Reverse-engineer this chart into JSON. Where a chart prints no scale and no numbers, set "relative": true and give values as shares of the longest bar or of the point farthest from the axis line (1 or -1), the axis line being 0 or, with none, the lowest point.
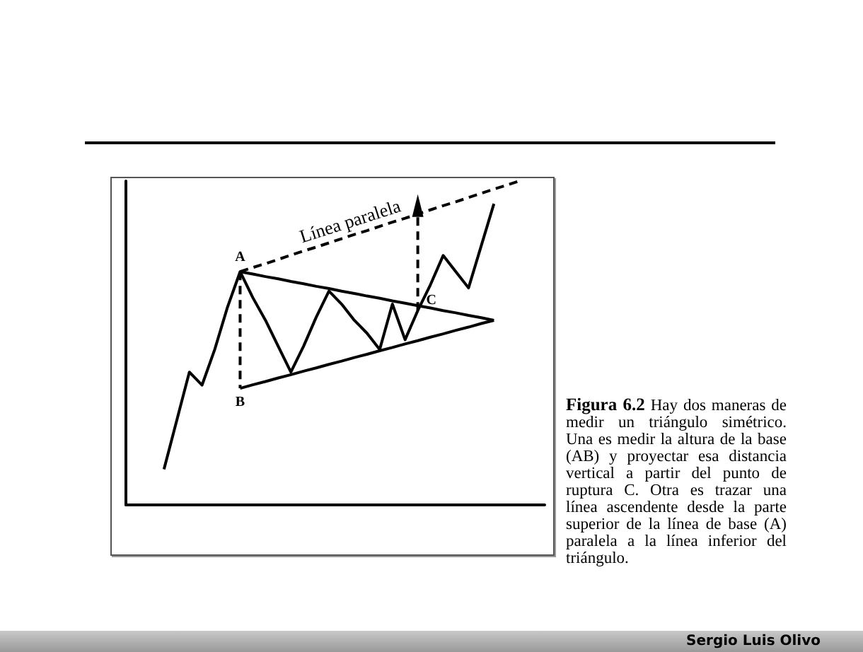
{
  "chart_data": {
    "type": "line",
    "relative": true,
    "marker": "none",
    "categories": [
      null,
      null,
      null,
      null,
      null,
      null,
      null,
      null,
      null,
      null,
      null,
      null,
      null,
      null,
      null,
      null,
      null,
      null,
      null,
      null,
      null,
      null,
      null,
      null,
      null,
      null,
      null,
      null,
      null,
      null,
      null,
      null,
      null,
      null
    ],
    "series": [
      {
        "color": "#000000",
        "line_style": "solid",
        "values": [
          null,
          null,
          null,
          0.11,
          0.26,
          0.41,
          0.37,
          0.48,
          0.61,
          0.72,
          0.64,
          0.57,
          0.49,
          0.41,
          0.49,
          0.58,
          0.66,
          0.62,
          0.57,
          0.53,
          0.48,
          0.62,
          0.51,
          0.6,
          0.68,
          0.77,
          0.72,
          0.67,
          0.8,
          0.93,
          null,
          null,
          null,
          null
        ]
      },
      {
        "color": "#000000",
        "line_style": "solid",
        "values": [
          null,
          null,
          null,
          null,
          null,
          null,
          null,
          null,
          null,
          0.72,
          0.713,
          0.705,
          0.698,
          0.69,
          0.683,
          0.675,
          0.668,
          0.66,
          0.653,
          0.645,
          0.638,
          0.63,
          0.623,
          0.615,
          0.608,
          0.6,
          0.593,
          0.585,
          0.578,
          0.57,
          null,
          null,
          null,
          null
        ]
      },
      {
        "color": "#000000",
        "line_style": "solid",
        "values": [
          null,
          null,
          null,
          null,
          null,
          null,
          null,
          null,
          null,
          0.36,
          0.371,
          0.381,
          0.392,
          0.402,
          0.413,
          0.423,
          0.434,
          0.444,
          0.455,
          0.465,
          0.476,
          0.486,
          0.497,
          0.507,
          0.518,
          0.528,
          0.539,
          0.549,
          0.56,
          0.57,
          null,
          null,
          null,
          null
        ]
      },
      {
        "color": "#000000",
        "line_style": "dashed",
        "values": [
          null,
          null,
          null,
          null,
          null,
          null,
          null,
          null,
          null,
          0.72,
          0.733,
          0.745,
          0.758,
          0.771,
          0.784,
          0.796,
          0.809,
          0.822,
          0.835,
          0.847,
          0.86,
          0.873,
          0.885,
          0.898,
          0.911,
          0.924,
          0.936,
          0.949,
          0.962,
          0.975,
          0.987,
          1.0,
          null,
          null
        ]
      }
    ],
    "annotations": [
      {
        "text": "A",
        "y": 0.72
      },
      {
        "text": "B",
        "y": 0.36
      },
      {
        "text": "C",
        "y": 0.6
      },
      {
        "text": "Línea paralela",
        "y": 0.835
      },
      "Figura 6.2",
      "Hay dos maneras de medir un triángulo simétrico. Una es medir la altura de la base (AB) y proyectar esa distancia vertical a partir del punto de ruptura C. Otra es trazar una línea ascendente desde la parte superior de la línea de base (A) paralela a la línea inferior del triángulo.",
      "Sergio Luis Olivo"
    ]
  }
}
